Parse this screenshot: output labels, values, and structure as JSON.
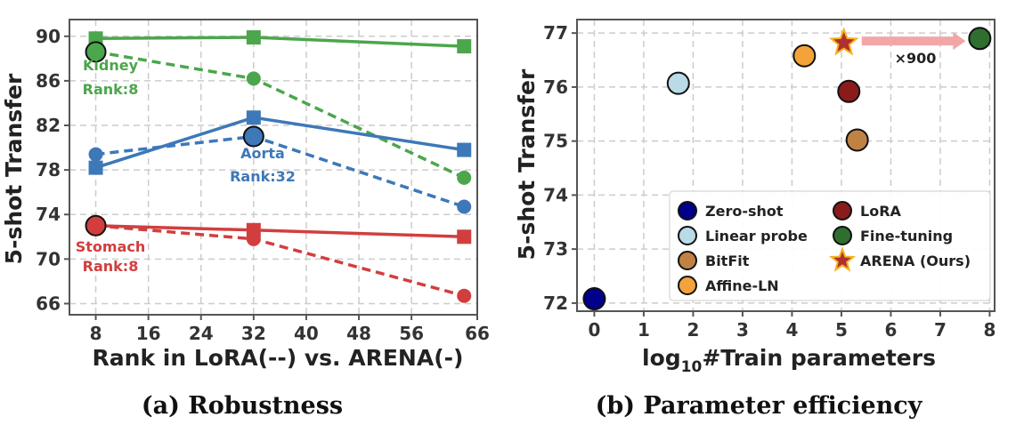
{
  "captions": {
    "a": "(a) Robustness",
    "b": "(b) Parameter efficiency"
  },
  "chart_data": [
    {
      "type": "line",
      "xlabel": "Rank in LoRA(--) vs. ARENA(-)",
      "ylabel": "5-shot Transfer",
      "xlim": [
        4,
        66
      ],
      "ylim": [
        65,
        91.5
      ],
      "xticks": [
        8,
        16,
        24,
        32,
        40,
        48,
        56,
        66
      ],
      "yticks": [
        66,
        70,
        74,
        78,
        82,
        86,
        90
      ],
      "grid": true,
      "x": [
        8,
        32,
        64
      ],
      "series": [
        {
          "group": "Kidney",
          "method": "ARENA",
          "style": "solid",
          "marker": "square",
          "color": "#4ca64c",
          "values": [
            89.8,
            89.9,
            89.1
          ]
        },
        {
          "group": "Kidney",
          "method": "LoRA",
          "style": "dashed",
          "marker": "circle",
          "color": "#4ca64c",
          "values": [
            88.6,
            86.2,
            77.3
          ]
        },
        {
          "group": "Aorta",
          "method": "ARENA",
          "style": "solid",
          "marker": "square",
          "color": "#3d78b8",
          "values": [
            78.2,
            82.7,
            79.8
          ]
        },
        {
          "group": "Aorta",
          "method": "LoRA",
          "style": "dashed",
          "marker": "circle",
          "color": "#3d78b8",
          "values": [
            79.4,
            81.0,
            74.7
          ]
        },
        {
          "group": "Stomach",
          "method": "ARENA",
          "style": "solid",
          "marker": "square",
          "color": "#d23e3e",
          "values": [
            73.0,
            72.6,
            72.0
          ]
        },
        {
          "group": "Stomach",
          "method": "LoRA",
          "style": "dashed",
          "marker": "circle",
          "color": "#d23e3e",
          "values": [
            73.0,
            71.8,
            66.7
          ]
        }
      ],
      "highlights": [
        {
          "x": 8,
          "y": 88.6,
          "color": "#4ca64c"
        },
        {
          "x": 32,
          "y": 81.0,
          "color": "#3d78b8"
        },
        {
          "x": 8,
          "y": 73.0,
          "color": "#d23e3e"
        }
      ],
      "annotations": [
        {
          "line1": "Kidney",
          "line2": "Rank:8",
          "color": "#4ca64c"
        },
        {
          "line1": "Aorta",
          "line2": "Rank:32",
          "color": "#3d78b8"
        },
        {
          "line1": "Stomach",
          "line2": "Rank:8",
          "color": "#d23e3e"
        }
      ]
    },
    {
      "type": "scatter",
      "xlabel": "log",
      "xlabel_sub": "10",
      "xlabel_rest": "#Train parameters",
      "ylabel": "5-shot Transfer",
      "xlim": [
        -0.35,
        8.1
      ],
      "ylim": [
        71.85,
        77.25
      ],
      "xticks": [
        0,
        1,
        2,
        3,
        4,
        5,
        6,
        7,
        8
      ],
      "yticks": [
        72,
        73,
        74,
        75,
        76,
        77
      ],
      "grid": true,
      "points": [
        {
          "name": "Zero-shot",
          "x": 0.0,
          "y": 72.08,
          "color": "#00008b",
          "marker": "circle"
        },
        {
          "name": "Linear probe",
          "x": 1.7,
          "y": 76.07,
          "color": "#b9dae6",
          "marker": "circle"
        },
        {
          "name": "BitFit",
          "x": 5.32,
          "y": 75.02,
          "color": "#c08244",
          "marker": "circle"
        },
        {
          "name": "Affine-LN",
          "x": 4.25,
          "y": 76.58,
          "color": "#f4a33a",
          "marker": "circle"
        },
        {
          "name": "LoRA",
          "x": 5.15,
          "y": 75.92,
          "color": "#8b1a1a",
          "marker": "circle"
        },
        {
          "name": "Fine-tuning",
          "x": 7.8,
          "y": 76.9,
          "color": "#2f6e2f",
          "marker": "circle"
        },
        {
          "name": "ARENA (Ours)",
          "x": 5.05,
          "y": 76.82,
          "color": "#b03030",
          "marker": "star"
        }
      ],
      "arrow_label": "×900",
      "legend": {
        "placement": "lower-right",
        "entries": [
          "Zero-shot",
          "Linear probe",
          "BitFit",
          "Affine-LN",
          "LoRA",
          "Fine-tuning",
          "ARENA (Ours)"
        ]
      }
    }
  ]
}
